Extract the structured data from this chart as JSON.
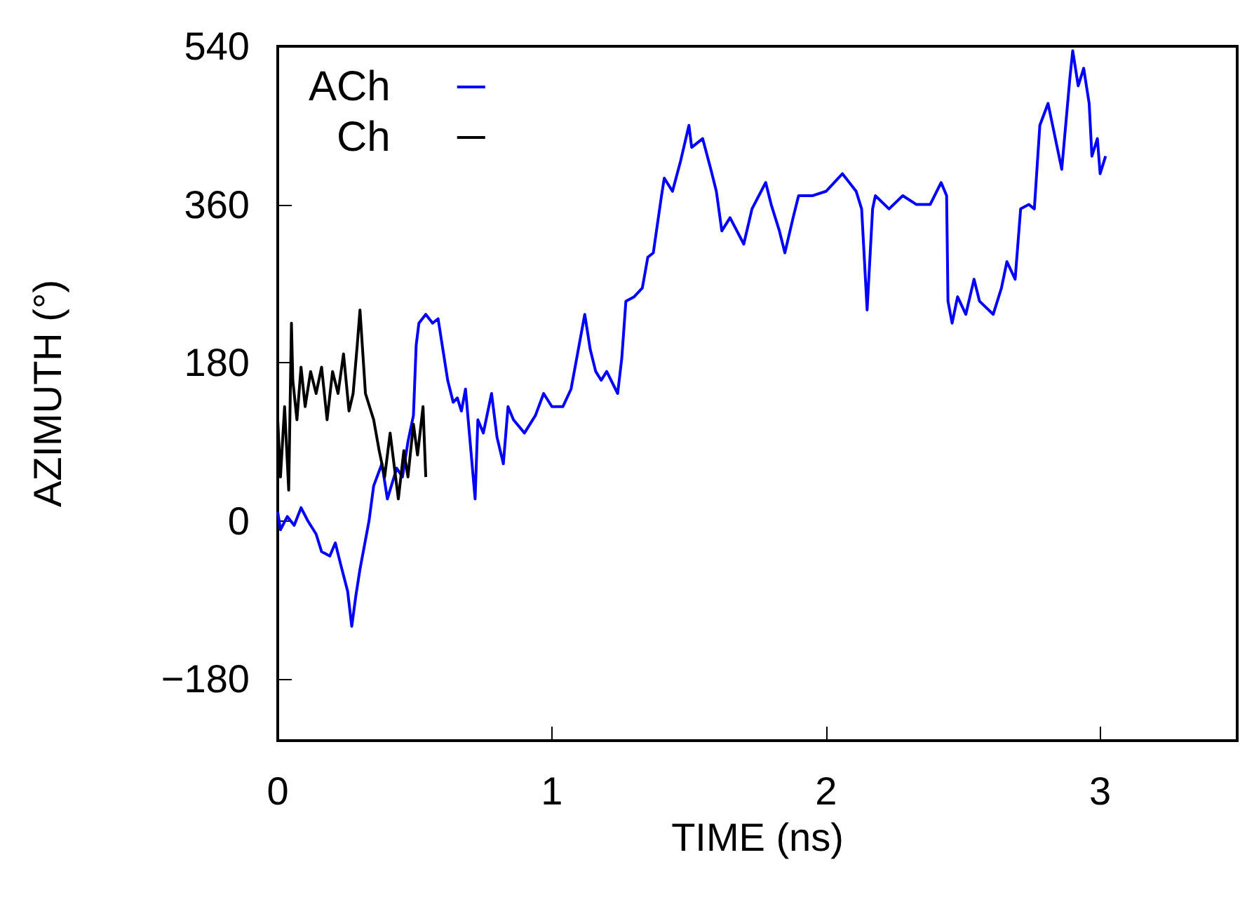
{
  "chart_data": {
    "type": "line",
    "xlabel": "TIME (ns)",
    "ylabel": "AZIMUTH (°)",
    "xlim": [
      0,
      3.5
    ],
    "ylim": [
      -250,
      540
    ],
    "xticks": [
      0,
      1,
      2,
      3
    ],
    "yticks": [
      {
        "value": -180,
        "label": "−180"
      },
      0,
      180,
      360,
      540
    ],
    "grid": false,
    "legend": "top left",
    "marker": "none",
    "line_style": "solid",
    "series": [
      {
        "name": "ACh",
        "color": "#0000ff",
        "x": [
          0,
          0.01,
          0.035,
          0.06,
          0.085,
          0.11,
          0.14,
          0.16,
          0.19,
          0.21,
          0.23,
          0.255,
          0.27,
          0.285,
          0.3,
          0.315,
          0.333,
          0.35,
          0.38,
          0.4,
          0.434,
          0.455,
          0.475,
          0.495,
          0.505,
          0.515,
          0.54,
          0.565,
          0.585,
          0.6,
          0.62,
          0.64,
          0.655,
          0.67,
          0.685,
          0.72,
          0.73,
          0.75,
          0.78,
          0.8,
          0.823,
          0.84,
          0.86,
          0.9,
          0.94,
          0.97,
          1.0,
          1.04,
          1.07,
          1.12,
          1.14,
          1.16,
          1.18,
          1.2,
          1.24,
          1.255,
          1.27,
          1.3,
          1.33,
          1.35,
          1.37,
          1.4,
          1.41,
          1.44,
          1.47,
          1.5,
          1.51,
          1.55,
          1.58,
          1.6,
          1.62,
          1.65,
          1.7,
          1.73,
          1.78,
          1.8,
          1.83,
          1.85,
          1.88,
          1.9,
          1.95,
          2.0,
          2.06,
          2.11,
          2.13,
          2.15,
          2.17,
          2.18,
          2.23,
          2.28,
          2.33,
          2.38,
          2.42,
          2.44,
          2.445,
          2.46,
          2.48,
          2.51,
          2.54,
          2.56,
          2.61,
          2.64,
          2.66,
          2.69,
          2.71,
          2.74,
          2.76,
          2.78,
          2.81,
          2.86,
          2.89,
          2.9,
          2.92,
          2.94,
          2.96,
          2.97,
          2.99,
          3.0,
          3.02
        ],
        "values": [
          10,
          -10,
          5,
          -5,
          15,
          0,
          -15,
          -35,
          -40,
          -25,
          -50,
          -80,
          -120,
          -85,
          -55,
          -30,
          0,
          40,
          65,
          25,
          60,
          50,
          90,
          120,
          200,
          225,
          235,
          225,
          230,
          200,
          160,
          135,
          140,
          125,
          150,
          25,
          115,
          100,
          145,
          95,
          65,
          130,
          115,
          100,
          120,
          145,
          130,
          130,
          150,
          235,
          195,
          170,
          160,
          170,
          145,
          185,
          250,
          255,
          265,
          300,
          305,
          370,
          390,
          375,
          410,
          450,
          425,
          435,
          400,
          375,
          330,
          345,
          315,
          355,
          385,
          360,
          330,
          305,
          345,
          370,
          370,
          375,
          395,
          375,
          355,
          240,
          355,
          370,
          355,
          370,
          360,
          360,
          385,
          370,
          250,
          225,
          255,
          235,
          275,
          250,
          235,
          265,
          295,
          275,
          355,
          360,
          355,
          450,
          475,
          400,
          505,
          535,
          495,
          515,
          475,
          415,
          435,
          395,
          415
        ]
      },
      {
        "name": "Ch",
        "color": "#000000",
        "x": [
          0,
          0.01,
          0.025,
          0.04,
          0.05,
          0.055,
          0.07,
          0.085,
          0.1,
          0.12,
          0.14,
          0.16,
          0.18,
          0.2,
          0.22,
          0.24,
          0.26,
          0.275,
          0.29,
          0.3,
          0.32,
          0.35,
          0.37,
          0.39,
          0.41,
          0.44,
          0.46,
          0.475,
          0.495,
          0.51,
          0.53,
          0.54
        ],
        "values": [
          115,
          50,
          130,
          35,
          225,
          160,
          115,
          175,
          130,
          170,
          145,
          175,
          115,
          170,
          145,
          190,
          125,
          145,
          200,
          240,
          145,
          115,
          80,
          50,
          100,
          25,
          80,
          50,
          110,
          75,
          130,
          50
        ]
      }
    ]
  }
}
